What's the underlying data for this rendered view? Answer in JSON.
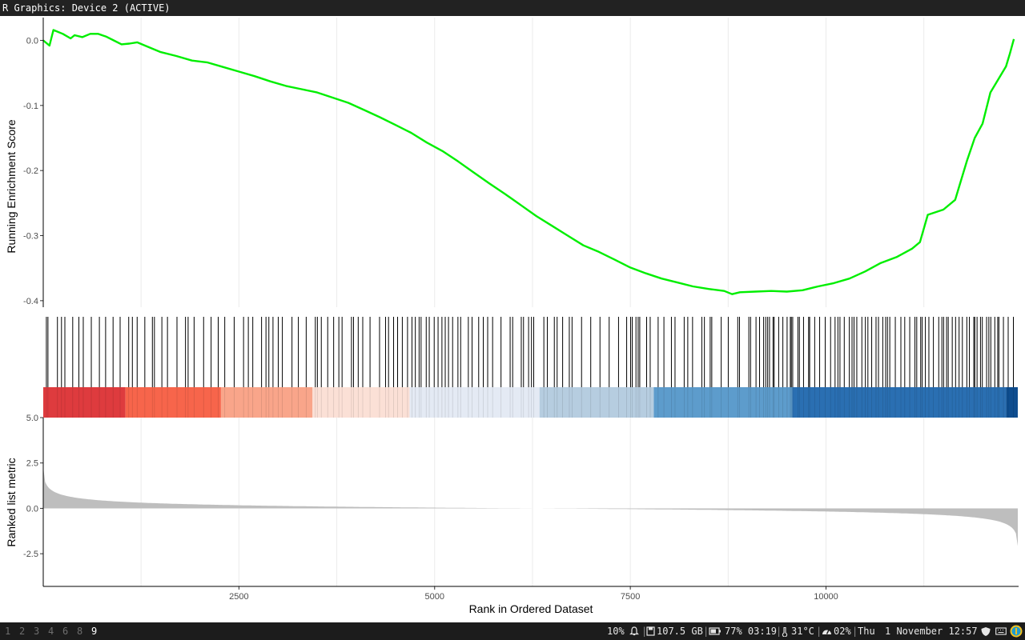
{
  "window": {
    "title": "R Graphics: Device 2 (ACTIVE)"
  },
  "chart_data": {
    "type": "line",
    "ylabel_top": "Running Enrichment Score",
    "ylabel_bottom": "Ranked list metric",
    "xlabel": "Rank in Ordered Dataset",
    "xlim": [
      0,
      12450
    ],
    "x_ticks": [
      2500,
      5000,
      7500,
      10000
    ],
    "x_tick_labels": [
      "2500",
      "5000",
      "7500",
      "10000"
    ],
    "x_minor_grid": [
      1250,
      3750,
      6250,
      8750,
      11250
    ],
    "es_ylim": [
      -0.41,
      0.035
    ],
    "es_ticks": [
      0.0,
      -0.1,
      -0.2,
      -0.3,
      -0.4
    ],
    "es_tick_labels": [
      "0.0",
      "-0.1",
      "-0.2",
      "-0.3",
      "-0.4"
    ],
    "metric_ylim": [
      -4.3,
      5.0
    ],
    "metric_ticks": [
      5.0,
      2.5,
      0.0,
      -2.5
    ],
    "metric_tick_labels": [
      "5.0",
      "2.5",
      "0.0",
      "-2.5"
    ],
    "grid": true,
    "colors": {
      "es_line": "#00ee00",
      "hits": "#000000",
      "metric_fill": "#bebebe"
    },
    "series": [
      {
        "values": [
          {
            "x": 0,
            "y": 0.0
          },
          {
            "x": 80,
            "y": -0.008
          },
          {
            "x": 130,
            "y": 0.016
          },
          {
            "x": 250,
            "y": 0.01
          },
          {
            "x": 350,
            "y": 0.003
          },
          {
            "x": 400,
            "y": 0.008
          },
          {
            "x": 500,
            "y": 0.005
          },
          {
            "x": 600,
            "y": 0.01
          },
          {
            "x": 700,
            "y": 0.01
          },
          {
            "x": 800,
            "y": 0.006
          },
          {
            "x": 900,
            "y": 0.0
          },
          {
            "x": 1000,
            "y": -0.006
          },
          {
            "x": 1100,
            "y": -0.005
          },
          {
            "x": 1200,
            "y": -0.003
          },
          {
            "x": 1300,
            "y": -0.008
          },
          {
            "x": 1500,
            "y": -0.018
          },
          {
            "x": 1700,
            "y": -0.024
          },
          {
            "x": 1900,
            "y": -0.031
          },
          {
            "x": 2100,
            "y": -0.034
          },
          {
            "x": 2300,
            "y": -0.041
          },
          {
            "x": 2500,
            "y": -0.048
          },
          {
            "x": 2700,
            "y": -0.055
          },
          {
            "x": 2900,
            "y": -0.063
          },
          {
            "x": 3100,
            "y": -0.07
          },
          {
            "x": 3300,
            "y": -0.075
          },
          {
            "x": 3500,
            "y": -0.08
          },
          {
            "x": 3700,
            "y": -0.088
          },
          {
            "x": 3900,
            "y": -0.096
          },
          {
            "x": 4100,
            "y": -0.107
          },
          {
            "x": 4300,
            "y": -0.118
          },
          {
            "x": 4500,
            "y": -0.13
          },
          {
            "x": 4700,
            "y": -0.142
          },
          {
            "x": 4900,
            "y": -0.157
          },
          {
            "x": 5100,
            "y": -0.17
          },
          {
            "x": 5300,
            "y": -0.186
          },
          {
            "x": 5500,
            "y": -0.203
          },
          {
            "x": 5700,
            "y": -0.22
          },
          {
            "x": 5900,
            "y": -0.236
          },
          {
            "x": 6100,
            "y": -0.253
          },
          {
            "x": 6300,
            "y": -0.27
          },
          {
            "x": 6500,
            "y": -0.285
          },
          {
            "x": 6700,
            "y": -0.3
          },
          {
            "x": 6900,
            "y": -0.315
          },
          {
            "x": 7100,
            "y": -0.325
          },
          {
            "x": 7300,
            "y": -0.337
          },
          {
            "x": 7500,
            "y": -0.349
          },
          {
            "x": 7700,
            "y": -0.358
          },
          {
            "x": 7900,
            "y": -0.366
          },
          {
            "x": 8100,
            "y": -0.372
          },
          {
            "x": 8300,
            "y": -0.378
          },
          {
            "x": 8500,
            "y": -0.382
          },
          {
            "x": 8700,
            "y": -0.385
          },
          {
            "x": 8800,
            "y": -0.39
          },
          {
            "x": 8900,
            "y": -0.387
          },
          {
            "x": 9100,
            "y": -0.386
          },
          {
            "x": 9300,
            "y": -0.385
          },
          {
            "x": 9500,
            "y": -0.386
          },
          {
            "x": 9700,
            "y": -0.384
          },
          {
            "x": 9900,
            "y": -0.378
          },
          {
            "x": 10100,
            "y": -0.373
          },
          {
            "x": 10300,
            "y": -0.366
          },
          {
            "x": 10500,
            "y": -0.355
          },
          {
            "x": 10700,
            "y": -0.342
          },
          {
            "x": 10900,
            "y": -0.333
          },
          {
            "x": 11100,
            "y": -0.32
          },
          {
            "x": 11200,
            "y": -0.31
          },
          {
            "x": 11300,
            "y": -0.268
          },
          {
            "x": 11500,
            "y": -0.26
          },
          {
            "x": 11650,
            "y": -0.245
          },
          {
            "x": 11700,
            "y": -0.225
          },
          {
            "x": 11800,
            "y": -0.185
          },
          {
            "x": 11900,
            "y": -0.15
          },
          {
            "x": 12000,
            "y": -0.128
          },
          {
            "x": 12100,
            "y": -0.08
          },
          {
            "x": 12200,
            "y": -0.06
          },
          {
            "x": 12300,
            "y": -0.04
          },
          {
            "x": 12350,
            "y": -0.02
          },
          {
            "x": 12400,
            "y": 0.002
          }
        ]
      }
    ],
    "color_band": [
      {
        "from": 0,
        "to": 1050,
        "color": "#de3b3e"
      },
      {
        "from": 1050,
        "to": 2270,
        "color": "#f7654b"
      },
      {
        "from": 2270,
        "to": 3440,
        "color": "#f9a58a"
      },
      {
        "from": 3440,
        "to": 4680,
        "color": "#fbe0d6"
      },
      {
        "from": 4680,
        "to": 6340,
        "color": "#e4eaf4"
      },
      {
        "from": 6340,
        "to": 7800,
        "color": "#b6cde0"
      },
      {
        "from": 7800,
        "to": 9570,
        "color": "#5d9ccc"
      },
      {
        "from": 9570,
        "to": 12300,
        "color": "#2a6fb2"
      },
      {
        "from": 12300,
        "to": 12450,
        "color": "#0e4d8f"
      }
    ]
  },
  "taskbar": {
    "workspaces": [
      "1",
      "2",
      "3",
      "4",
      "6",
      "8",
      "9"
    ],
    "active_workspace": "9",
    "volume": "10%",
    "disk": "107.5 GB",
    "battery": "77% 03:19",
    "temperature": "31°C",
    "cpu": "02%",
    "day": "Thu",
    "datetime": "1 November 12:57"
  }
}
